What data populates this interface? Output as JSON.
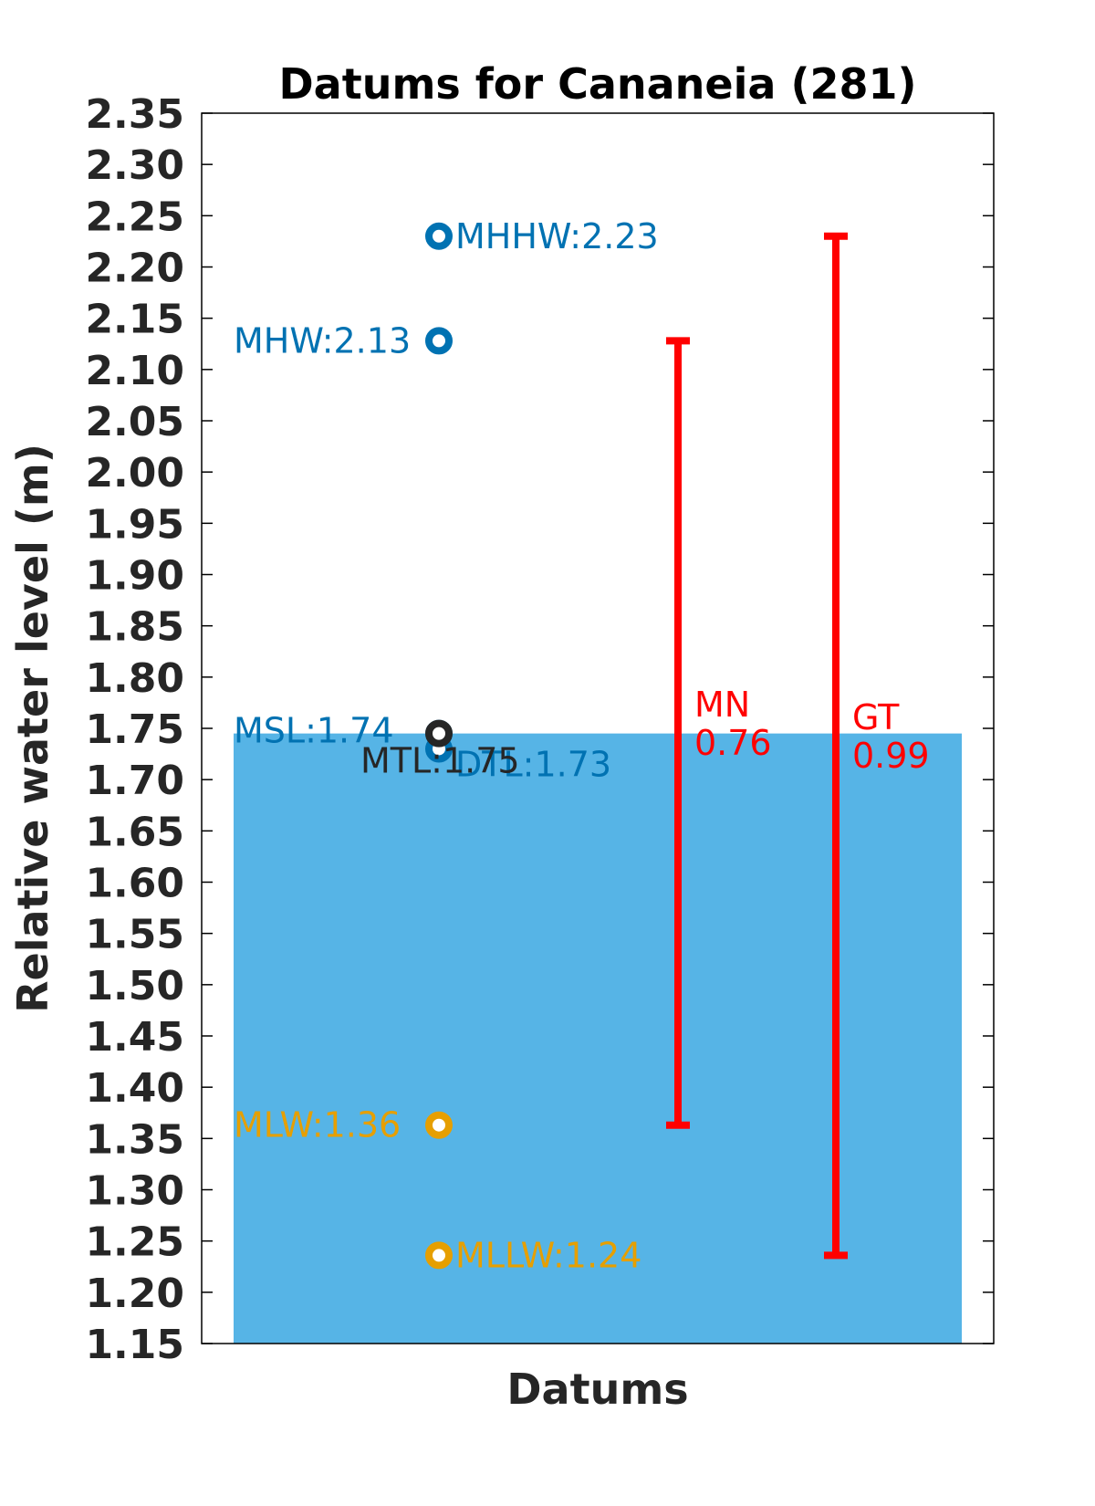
{
  "chart_data": {
    "type": "bar",
    "title": "Datums for Cananeia (281)",
    "xlabel": "Datums",
    "ylabel": "Relative water level (m)",
    "ylim": [
      1.15,
      2.35
    ],
    "yticks": [
      "1.15",
      "1.20",
      "1.25",
      "1.30",
      "1.35",
      "1.40",
      "1.45",
      "1.50",
      "1.55",
      "1.60",
      "1.65",
      "1.70",
      "1.75",
      "1.80",
      "1.85",
      "1.90",
      "1.95",
      "2.00",
      "2.05",
      "2.10",
      "2.15",
      "2.20",
      "2.25",
      "2.30",
      "2.35"
    ],
    "grid": false,
    "bar": {
      "value": 1.745,
      "color": "#56b4e6"
    },
    "datums": [
      {
        "name": "MHHW",
        "label": "MHHW:2.23",
        "value": 2.23,
        "color": "#0072b2",
        "label_side": "right"
      },
      {
        "name": "MHW",
        "label": "MHW:2.13",
        "value": 2.128,
        "color": "#0072b2",
        "label_side": "left"
      },
      {
        "name": "MSL",
        "label": "MSL:1.74",
        "value": 1.745,
        "color": "#0072b2",
        "label_side": "left"
      },
      {
        "name": "DTL",
        "label": "DTL:1.73",
        "value": 1.73,
        "color": "#0072b2",
        "label_side": "right"
      },
      {
        "name": "MTL",
        "label": "MTL:1.75",
        "value": 1.745,
        "color": "#262626",
        "label_side": "below"
      },
      {
        "name": "MLW",
        "label": "MLW:1.36",
        "value": 1.363,
        "color": "#e69f00",
        "label_side": "left"
      },
      {
        "name": "MLLW",
        "label": "MLLW:1.24",
        "value": 1.236,
        "color": "#e69f00",
        "label_side": "right"
      }
    ],
    "ranges": [
      {
        "name": "MN",
        "value_label": "0.76",
        "low": 1.363,
        "high": 2.128,
        "color": "#ff0000"
      },
      {
        "name": "GT",
        "value_label": "0.99",
        "low": 1.236,
        "high": 2.23,
        "color": "#ff0000"
      }
    ]
  }
}
